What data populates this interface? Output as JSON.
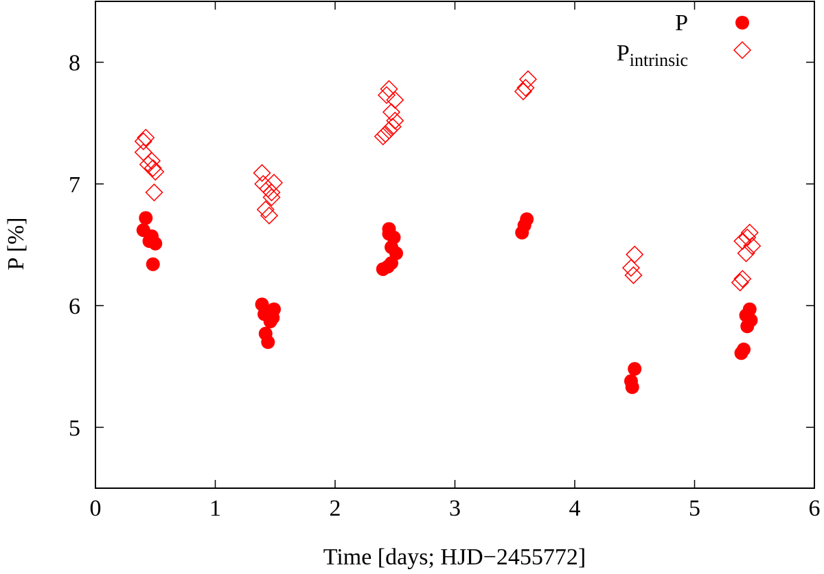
{
  "chart_data": {
    "type": "scatter",
    "title": "",
    "xlabel": "Time [days; HJD−2455772]",
    "ylabel": "P [%]",
    "xlim": [
      0,
      6
    ],
    "ylim": [
      4.5,
      8.5
    ],
    "xticks": [
      0,
      1,
      2,
      3,
      4,
      5,
      6
    ],
    "yticks": [
      5,
      6,
      7,
      8
    ],
    "legend_placement": "top-right",
    "grid": false,
    "series": [
      {
        "name": "P",
        "marker": "filled-circle",
        "color": "#ff0000",
        "points": [
          [
            0.42,
            6.72
          ],
          [
            0.4,
            6.62
          ],
          [
            0.45,
            6.53
          ],
          [
            0.47,
            6.57
          ],
          [
            0.5,
            6.51
          ],
          [
            0.48,
            6.34
          ],
          [
            1.39,
            6.01
          ],
          [
            1.41,
            5.93
          ],
          [
            1.46,
            5.87
          ],
          [
            1.49,
            5.97
          ],
          [
            1.48,
            5.9
          ],
          [
            1.42,
            5.77
          ],
          [
            1.44,
            5.7
          ],
          [
            2.4,
            6.3
          ],
          [
            2.44,
            6.32
          ],
          [
            2.47,
            6.35
          ],
          [
            2.45,
            6.59
          ],
          [
            2.45,
            6.63
          ],
          [
            2.49,
            6.56
          ],
          [
            2.47,
            6.48
          ],
          [
            2.51,
            6.43
          ],
          [
            3.56,
            6.6
          ],
          [
            3.58,
            6.66
          ],
          [
            3.6,
            6.71
          ],
          [
            4.47,
            5.38
          ],
          [
            4.5,
            5.48
          ],
          [
            4.48,
            5.33
          ],
          [
            5.39,
            5.61
          ],
          [
            5.41,
            5.64
          ],
          [
            5.43,
            5.92
          ],
          [
            5.46,
            5.97
          ],
          [
            5.44,
            5.83
          ],
          [
            5.47,
            5.88
          ]
        ]
      },
      {
        "name": "P",
        "name_sub": "intrinsic",
        "marker": "open-diamond",
        "color": "#ff0000",
        "points": [
          [
            0.42,
            7.38
          ],
          [
            0.4,
            7.35
          ],
          [
            0.4,
            7.26
          ],
          [
            0.44,
            7.16
          ],
          [
            0.47,
            7.19
          ],
          [
            0.5,
            7.1
          ],
          [
            0.48,
            7.13
          ],
          [
            0.49,
            6.93
          ],
          [
            1.39,
            7.09
          ],
          [
            1.4,
            7.0
          ],
          [
            1.44,
            6.96
          ],
          [
            1.47,
            6.93
          ],
          [
            1.49,
            7.01
          ],
          [
            1.47,
            6.89
          ],
          [
            1.42,
            6.79
          ],
          [
            1.45,
            6.74
          ],
          [
            2.4,
            7.39
          ],
          [
            2.42,
            7.41
          ],
          [
            2.45,
            7.44
          ],
          [
            2.48,
            7.47
          ],
          [
            2.5,
            7.52
          ],
          [
            2.47,
            7.59
          ],
          [
            2.5,
            7.69
          ],
          [
            2.43,
            7.73
          ],
          [
            2.45,
            7.78
          ],
          [
            3.57,
            7.76
          ],
          [
            3.59,
            7.79
          ],
          [
            3.61,
            7.86
          ],
          [
            4.47,
            6.31
          ],
          [
            4.49,
            6.25
          ],
          [
            4.5,
            6.42
          ],
          [
            5.38,
            6.19
          ],
          [
            5.4,
            6.22
          ],
          [
            5.4,
            6.53
          ],
          [
            5.43,
            6.43
          ],
          [
            5.44,
            6.56
          ],
          [
            5.46,
            6.6
          ],
          [
            5.48,
            6.49
          ]
        ]
      }
    ]
  }
}
